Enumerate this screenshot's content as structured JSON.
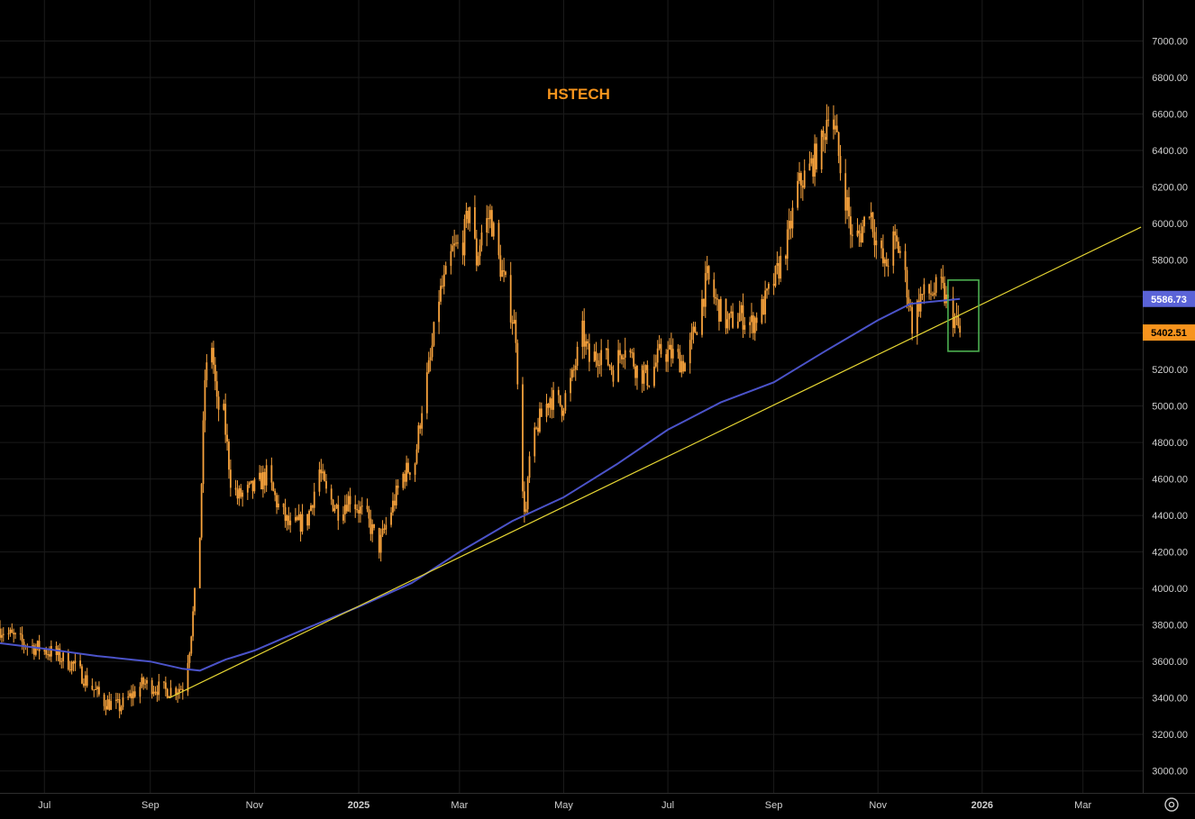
{
  "chart_data": {
    "type": "candlestick",
    "title": "HSTECH",
    "xlabel": "",
    "ylabel": "",
    "x_range": [
      "2024-06-05",
      "2026-04-05"
    ],
    "ylim": [
      2880,
      7200
    ],
    "grid": true,
    "x_ticks": [
      {
        "date": "2024-07-01",
        "label": "Jul",
        "bold": false
      },
      {
        "date": "2024-09-01",
        "label": "Sep",
        "bold": false
      },
      {
        "date": "2024-11-01",
        "label": "Nov",
        "bold": false
      },
      {
        "date": "2025-01-01",
        "label": "2025",
        "bold": true
      },
      {
        "date": "2025-03-01",
        "label": "Mar",
        "bold": false
      },
      {
        "date": "2025-05-01",
        "label": "May",
        "bold": false
      },
      {
        "date": "2025-07-01",
        "label": "Jul",
        "bold": false
      },
      {
        "date": "2025-09-01",
        "label": "Sep",
        "bold": false
      },
      {
        "date": "2025-11-01",
        "label": "Nov",
        "bold": false
      },
      {
        "date": "2026-01-01",
        "label": "2026",
        "bold": true
      },
      {
        "date": "2026-03-01",
        "label": "Mar",
        "bold": false
      }
    ],
    "y_ticks": [
      3000,
      3200,
      3400,
      3600,
      3800,
      4000,
      4200,
      4400,
      4600,
      4800,
      5000,
      5200,
      5400,
      5600,
      5800,
      6000,
      6200,
      6400,
      6600,
      6800,
      7000
    ],
    "y_tick_labels": [
      "3000.00",
      "3200.00",
      "3400.00",
      "3600.00",
      "3800.00",
      "4000.00",
      "4200.00",
      "4400.00",
      "4600.00",
      "4800.00",
      "5000.00",
      "5200.00",
      "5400.00",
      "5600.00",
      "5800.00",
      "6000.00",
      "6200.00",
      "6400.00",
      "6600.00",
      "6800.00",
      "7000.00"
    ],
    "price_path": [
      [
        "2024-06-05",
        3780
      ],
      [
        "2024-06-18",
        3700
      ],
      [
        "2024-07-05",
        3650
      ],
      [
        "2024-07-18",
        3580
      ],
      [
        "2024-08-05",
        3380
      ],
      [
        "2024-08-14",
        3350
      ],
      [
        "2024-08-28",
        3480
      ],
      [
        "2024-09-10",
        3440
      ],
      [
        "2024-09-20",
        3460
      ],
      [
        "2024-09-24",
        3680
      ],
      [
        "2024-09-27",
        3950
      ],
      [
        "2024-09-30",
        4300
      ],
      [
        "2024-10-03",
        5150
      ],
      [
        "2024-10-07",
        5340
      ],
      [
        "2024-10-10",
        5000
      ],
      [
        "2024-10-14",
        4950
      ],
      [
        "2024-10-18",
        4600
      ],
      [
        "2024-10-22",
        4500
      ],
      [
        "2024-11-01",
        4550
      ],
      [
        "2024-11-08",
        4620
      ],
      [
        "2024-11-15",
        4450
      ],
      [
        "2024-11-22",
        4330
      ],
      [
        "2024-12-02",
        4380
      ],
      [
        "2024-12-09",
        4650
      ],
      [
        "2024-12-13",
        4520
      ],
      [
        "2024-12-20",
        4430
      ],
      [
        "2024-12-27",
        4500
      ],
      [
        "2025-01-06",
        4380
      ],
      [
        "2025-01-13",
        4230
      ],
      [
        "2025-01-20",
        4430
      ],
      [
        "2025-01-27",
        4620
      ],
      [
        "2025-02-03",
        4700
      ],
      [
        "2025-02-07",
        5000
      ],
      [
        "2025-02-12",
        5250
      ],
      [
        "2025-02-17",
        5600
      ],
      [
        "2025-02-21",
        5700
      ],
      [
        "2025-02-25",
        5850
      ],
      [
        "2025-03-03",
        5900
      ],
      [
        "2025-03-07",
        6100
      ],
      [
        "2025-03-11",
        5800
      ],
      [
        "2025-03-14",
        5950
      ],
      [
        "2025-03-19",
        6050
      ],
      [
        "2025-03-24",
        5800
      ],
      [
        "2025-03-28",
        5650
      ],
      [
        "2025-04-03",
        5400
      ],
      [
        "2025-04-07",
        4500
      ],
      [
        "2025-04-09",
        4420
      ],
      [
        "2025-04-11",
        4700
      ],
      [
        "2025-04-16",
        4900
      ],
      [
        "2025-04-23",
        5050
      ],
      [
        "2025-04-30",
        5000
      ],
      [
        "2025-05-06",
        5150
      ],
      [
        "2025-05-12",
        5400
      ],
      [
        "2025-05-16",
        5250
      ],
      [
        "2025-05-23",
        5300
      ],
      [
        "2025-05-30",
        5200
      ],
      [
        "2025-06-06",
        5350
      ],
      [
        "2025-06-13",
        5200
      ],
      [
        "2025-06-20",
        5150
      ],
      [
        "2025-06-27",
        5300
      ],
      [
        "2025-07-04",
        5280
      ],
      [
        "2025-07-11",
        5230
      ],
      [
        "2025-07-18",
        5450
      ],
      [
        "2025-07-24",
        5700
      ],
      [
        "2025-07-30",
        5550
      ],
      [
        "2025-08-05",
        5450
      ],
      [
        "2025-08-12",
        5500
      ],
      [
        "2025-08-19",
        5450
      ],
      [
        "2025-08-26",
        5550
      ],
      [
        "2025-09-02",
        5700
      ],
      [
        "2025-09-09",
        5900
      ],
      [
        "2025-09-15",
        6200
      ],
      [
        "2025-09-22",
        6300
      ],
      [
        "2025-09-30",
        6450
      ],
      [
        "2025-10-03",
        6650
      ],
      [
        "2025-10-07",
        6500
      ],
      [
        "2025-10-10",
        6300
      ],
      [
        "2025-10-14",
        6100
      ],
      [
        "2025-10-17",
        5900
      ],
      [
        "2025-10-22",
        5950
      ],
      [
        "2025-10-27",
        6100
      ],
      [
        "2025-10-31",
        5900
      ],
      [
        "2025-11-05",
        5750
      ],
      [
        "2025-11-10",
        5900
      ],
      [
        "2025-11-14",
        5850
      ],
      [
        "2025-11-18",
        5650
      ],
      [
        "2025-11-21",
        5450
      ],
      [
        "2025-11-26",
        5600
      ],
      [
        "2025-12-02",
        5620
      ],
      [
        "2025-12-08",
        5650
      ],
      [
        "2025-12-12",
        5550
      ],
      [
        "2025-12-17",
        5450
      ],
      [
        "2025-12-19",
        5402.51
      ]
    ],
    "series": [
      {
        "kind": "moving-average",
        "color": "#4B53C9",
        "points": [
          [
            "2024-06-05",
            3700
          ],
          [
            "2024-07-01",
            3670
          ],
          [
            "2024-08-01",
            3630
          ],
          [
            "2024-09-01",
            3600
          ],
          [
            "2024-09-20",
            3560
          ],
          [
            "2024-09-30",
            3550
          ],
          [
            "2024-10-15",
            3610
          ],
          [
            "2024-11-01",
            3660
          ],
          [
            "2024-12-01",
            3780
          ],
          [
            "2025-01-01",
            3900
          ],
          [
            "2025-02-01",
            4030
          ],
          [
            "2025-03-01",
            4200
          ],
          [
            "2025-04-01",
            4370
          ],
          [
            "2025-05-01",
            4500
          ],
          [
            "2025-06-01",
            4680
          ],
          [
            "2025-07-01",
            4870
          ],
          [
            "2025-08-01",
            5020
          ],
          [
            "2025-09-01",
            5130
          ],
          [
            "2025-10-01",
            5300
          ],
          [
            "2025-11-01",
            5470
          ],
          [
            "2025-11-20",
            5560
          ],
          [
            "2025-12-19",
            5586.73
          ]
        ]
      },
      {
        "kind": "trendline",
        "color": "#E6D633",
        "points": [
          [
            "2024-09-12",
            3400
          ],
          [
            "2026-04-04",
            5980
          ]
        ]
      }
    ],
    "annotations": [
      {
        "kind": "box",
        "color": "#4CAF50",
        "date_start": "2025-12-12",
        "date_end": "2025-12-30",
        "price_low": 5300,
        "price_high": 5690
      }
    ],
    "price_labels": [
      {
        "value": 5586.73,
        "text": "5586.73",
        "background": "#5A63D8",
        "color": "#FFFFFF"
      },
      {
        "value": 5402.51,
        "text": "5402.51",
        "background": "#F7941D",
        "color": "#000000"
      }
    ]
  },
  "colors": {
    "background": "#000000",
    "grid": "#1B1B1B",
    "candle": "#F7A23C",
    "title": "#F7941D",
    "axis_text": "#D0D0D0",
    "axis_border": "#2E2E2E"
  },
  "icons": {
    "settings": "gear-icon"
  }
}
